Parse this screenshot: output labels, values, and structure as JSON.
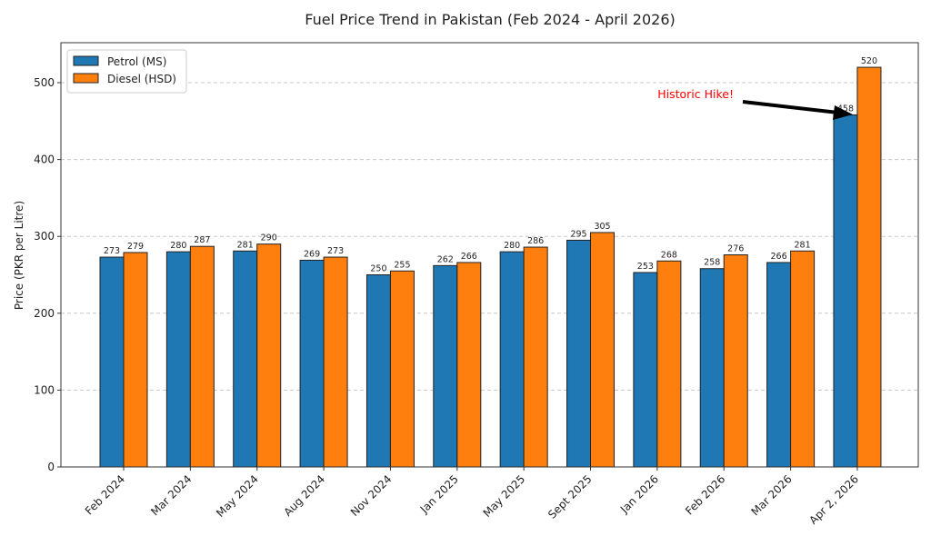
{
  "chart_data": {
    "type": "bar",
    "title": "Fuel Price Trend in Pakistan (Feb 2024 - April 2026)",
    "xlabel": "",
    "ylabel": "Price (PKR per Litre)",
    "ylim": [
      0,
      552
    ],
    "yticks": [
      0,
      100,
      200,
      300,
      400,
      500
    ],
    "grid": "y-dashed",
    "legend_position": "top-left",
    "categories": [
      "Feb 2024",
      "Mar 2024",
      "May 2024",
      "Aug 2024",
      "Nov 2024",
      "Jan 2025",
      "May 2025",
      "Sept 2025",
      "Jan 2026",
      "Feb 2026",
      "Mar 2026",
      "Apr 2, 2026"
    ],
    "series": [
      {
        "name": "Petrol (MS)",
        "color": "#1f77b4",
        "values": [
          273,
          280,
          281,
          269,
          250,
          262,
          280,
          295,
          253,
          258,
          266,
          458
        ]
      },
      {
        "name": "Diesel (HSD)",
        "color": "#ff7f0e",
        "values": [
          279,
          287,
          290,
          273,
          255,
          266,
          286,
          305,
          268,
          276,
          281,
          520
        ]
      }
    ],
    "annotation": {
      "text": "Historic Hike!",
      "color": "#ff0000",
      "target_category": "Apr 2, 2026",
      "target_series": "Petrol (MS)",
      "target_value": 458
    }
  }
}
